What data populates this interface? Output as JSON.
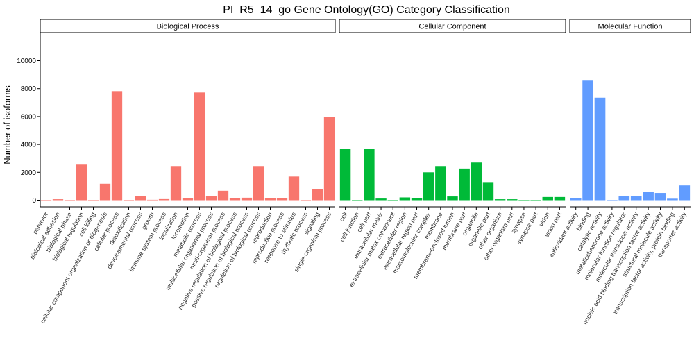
{
  "chart_data": {
    "type": "bar",
    "title": "PI_R5_14_go Gene Ontology(GO) Category Classification",
    "xlabel": "",
    "ylabel": "Number of isoforms",
    "ylim": [
      0,
      12000
    ],
    "yticks": [
      0,
      2000,
      4000,
      6000,
      8000,
      10000
    ],
    "grid": false,
    "legend": "none",
    "panels": [
      {
        "name": "Biological Process",
        "color": "#F8766D",
        "categories": [
          "behavior",
          "biological adhesion",
          "biological phase",
          "biological regulation",
          "cell killing",
          "cellular component organization or biogenesis",
          "cellular process",
          "detoxification",
          "developmental process",
          "growth",
          "immune system process",
          "localization",
          "locomotion",
          "metabolic process",
          "multicellular organismal process",
          "multi-organism process",
          "negative regulation of biological process",
          "positive regulation of biological process",
          "regulation of biological process",
          "reproduction",
          "reproductive process",
          "response to stimulus",
          "rhythmic process",
          "signaling",
          "single-organism process"
        ],
        "values": [
          10,
          70,
          20,
          2550,
          10,
          1180,
          7820,
          10,
          290,
          30,
          80,
          2450,
          130,
          7720,
          280,
          680,
          150,
          180,
          2450,
          160,
          150,
          1700,
          10,
          820,
          5950
        ]
      },
      {
        "name": "Cellular Component",
        "color": "#00BA38",
        "categories": [
          "cell",
          "cell junction",
          "cell part",
          "extracellular matrix",
          "extracellular matrix component",
          "extracellular region",
          "extracellular region part",
          "macromolecular complex",
          "membrane",
          "membrane-enclosed lumen",
          "membrane part",
          "organelle",
          "organelle part",
          "other organism",
          "other organism part",
          "synapse",
          "synapse part",
          "virion",
          "virion part"
        ],
        "values": [
          3700,
          10,
          3700,
          120,
          10,
          200,
          150,
          2000,
          2450,
          270,
          2270,
          2700,
          1300,
          70,
          70,
          10,
          10,
          230,
          230
        ]
      },
      {
        "name": "Molecular Function",
        "color": "#619CFF",
        "categories": [
          "antioxidant activity",
          "binding",
          "catalytic activity",
          "metallochaperone activity",
          "molecular function regulator",
          "molecular transducer activity",
          "nucleic acid binding transcription factor activity",
          "structural molecule activity",
          "transcription factor activity, protein binding",
          "transporter activity"
        ],
        "values": [
          130,
          8620,
          7350,
          10,
          310,
          280,
          580,
          520,
          110,
          1060
        ]
      }
    ]
  }
}
